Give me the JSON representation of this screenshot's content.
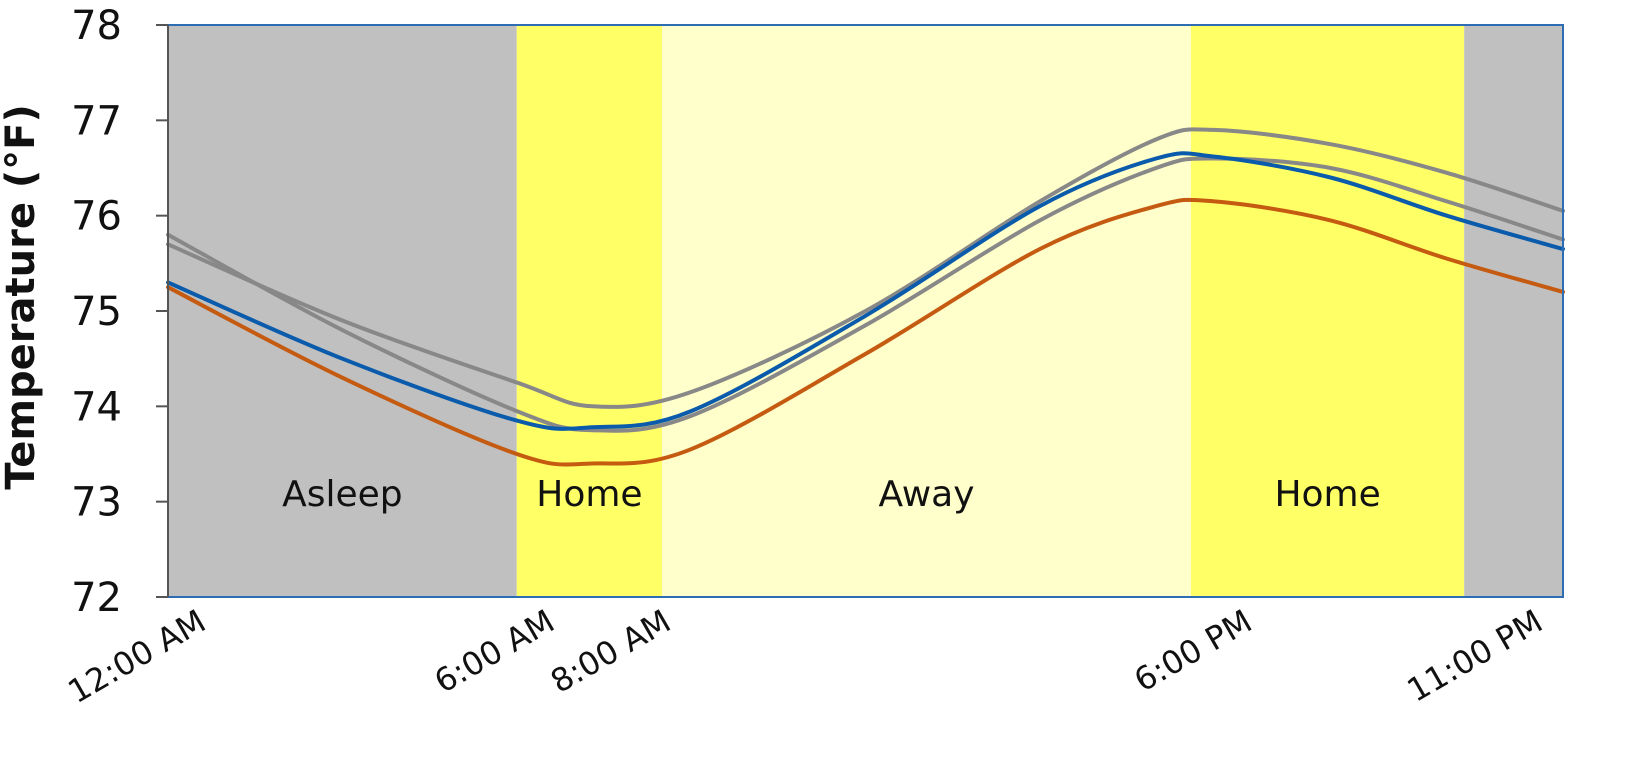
{
  "chart_data": {
    "type": "line",
    "title": "",
    "xlabel": "",
    "ylabel": "Temperature (°F)",
    "xlim": [
      0,
      24
    ],
    "ylim": [
      72,
      78
    ],
    "yticks": [
      72,
      73,
      74,
      75,
      76,
      77,
      78
    ],
    "xticks": [
      {
        "x": 0,
        "label": "12:00 AM"
      },
      {
        "x": 6,
        "label": "6:00 AM"
      },
      {
        "x": 8,
        "label": "8:00 AM"
      },
      {
        "x": 18,
        "label": "6:00 PM"
      },
      {
        "x": 23,
        "label": "11:00 PM"
      }
    ],
    "grid": false,
    "legend": false,
    "periods": [
      {
        "start": 0,
        "end": 6,
        "label": "Asleep",
        "color": "#c0c0c0"
      },
      {
        "start": 6,
        "end": 8.5,
        "label": "Home",
        "color": "#ffff66"
      },
      {
        "start": 8.5,
        "end": 17.6,
        "label": "Away",
        "color": "#ffffcc"
      },
      {
        "start": 17.6,
        "end": 22.3,
        "label": "Home",
        "color": "#ffff66"
      },
      {
        "start": 22.3,
        "end": 24,
        "label": "",
        "color": "#c0c0c0"
      }
    ],
    "series": [
      {
        "color": "#888888",
        "points": [
          [
            0,
            75.7
          ],
          [
            3,
            74.9
          ],
          [
            6,
            74.25
          ],
          [
            7.3,
            74.0
          ],
          [
            9,
            74.15
          ],
          [
            12,
            75.0
          ],
          [
            15,
            76.15
          ],
          [
            17,
            76.8
          ],
          [
            18,
            76.9
          ],
          [
            20,
            76.75
          ],
          [
            22,
            76.45
          ],
          [
            24,
            76.05
          ]
        ]
      },
      {
        "color": "#888888",
        "points": [
          [
            0,
            75.8
          ],
          [
            3,
            74.8
          ],
          [
            6,
            73.95
          ],
          [
            7.3,
            73.75
          ],
          [
            9,
            73.9
          ],
          [
            12,
            74.85
          ],
          [
            15,
            75.95
          ],
          [
            17,
            76.5
          ],
          [
            18,
            76.6
          ],
          [
            20,
            76.5
          ],
          [
            22,
            76.15
          ],
          [
            24,
            75.75
          ]
        ]
      },
      {
        "color": "#0a5bab",
        "points": [
          [
            0,
            75.3
          ],
          [
            3,
            74.5
          ],
          [
            6,
            73.85
          ],
          [
            7.3,
            73.78
          ],
          [
            9,
            73.95
          ],
          [
            12,
            74.95
          ],
          [
            15,
            76.1
          ],
          [
            17,
            76.6
          ],
          [
            18,
            76.62
          ],
          [
            20,
            76.4
          ],
          [
            22,
            76.0
          ],
          [
            24,
            75.65
          ]
        ]
      },
      {
        "color": "#c55a11",
        "points": [
          [
            0,
            75.25
          ],
          [
            3,
            74.3
          ],
          [
            6,
            73.5
          ],
          [
            7.3,
            73.4
          ],
          [
            9,
            73.55
          ],
          [
            12,
            74.55
          ],
          [
            15,
            75.65
          ],
          [
            17,
            76.1
          ],
          [
            18,
            76.15
          ],
          [
            20,
            75.95
          ],
          [
            22,
            75.55
          ],
          [
            24,
            75.2
          ]
        ]
      }
    ]
  }
}
